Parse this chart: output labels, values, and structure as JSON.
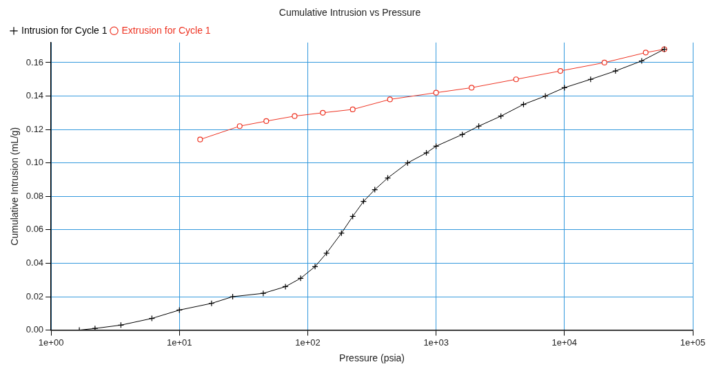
{
  "chart_data": {
    "type": "line",
    "title": "Cumulative Intrusion vs Pressure",
    "xlabel": "Pressure (psia)",
    "ylabel": "Cumulative Intrusion (mL/g)",
    "log": "x",
    "grid": true,
    "legend": "top left",
    "line_style": "solid",
    "xlim": [
      1,
      100000
    ],
    "xticks": [
      {
        "value": 1,
        "label": "1e+00"
      },
      {
        "value": 10,
        "label": "1e+01"
      },
      {
        "value": 100,
        "label": "1e+02"
      },
      {
        "value": 1000,
        "label": "1e+03"
      },
      {
        "value": 10000,
        "label": "1e+04"
      },
      {
        "value": 100000,
        "label": "1e+05"
      }
    ],
    "ylim": [
      0,
      0.172
    ],
    "yticks": [
      {
        "value": 0,
        "label": "0.00"
      },
      {
        "value": 0.02,
        "label": "0.02"
      },
      {
        "value": 0.04,
        "label": "0.04"
      },
      {
        "value": 0.06,
        "label": "0.06"
      },
      {
        "value": 0.08,
        "label": "0.08"
      },
      {
        "value": 0.1,
        "label": "0.10"
      },
      {
        "value": 0.12,
        "label": "0.12"
      },
      {
        "value": 0.14,
        "label": "0.14"
      },
      {
        "value": 0.16,
        "label": "0.16"
      }
    ],
    "series": [
      {
        "name": "Intrusion for Cycle 1",
        "color": "#000000",
        "marker": "cross",
        "x": [
          1.66,
          2.2,
          3.5,
          6.1,
          10,
          17.8,
          26,
          45,
          67,
          88,
          114,
          140,
          183,
          224,
          272,
          333,
          420,
          600,
          840,
          1000,
          1600,
          2150,
          3200,
          4800,
          7100,
          10000,
          16000,
          25000,
          40000,
          60000
        ],
        "values": [
          0,
          0.001,
          0.003,
          0.007,
          0.012,
          0.016,
          0.02,
          0.022,
          0.026,
          0.031,
          0.038,
          0.046,
          0.058,
          0.068,
          0.077,
          0.084,
          0.091,
          0.1,
          0.106,
          0.11,
          0.117,
          0.122,
          0.128,
          0.135,
          0.14,
          0.145,
          0.15,
          0.155,
          0.161,
          0.168
        ]
      },
      {
        "name": "Extrusion for Cycle 1",
        "color": "#ee3322",
        "marker": "circle",
        "x": [
          14.5,
          29.5,
          47.5,
          79,
          131,
          224,
          437,
          1000,
          1890,
          4200,
          9300,
          20500,
          43000,
          60000
        ],
        "values": [
          0.114,
          0.122,
          0.125,
          0.128,
          0.13,
          0.132,
          0.138,
          0.142,
          0.145,
          0.15,
          0.155,
          0.16,
          0.166,
          0.168
        ]
      }
    ]
  }
}
